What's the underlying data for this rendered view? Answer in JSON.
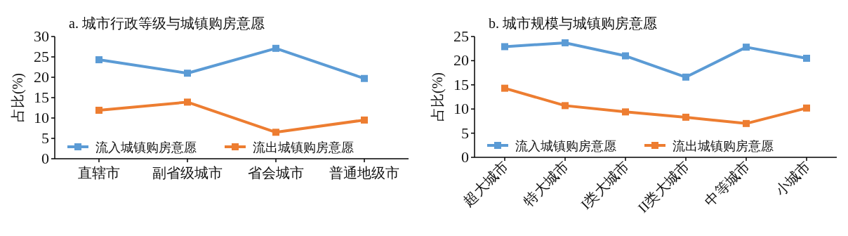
{
  "chart_data": [
    {
      "type": "line",
      "title": "a. 城市行政等级与城镇购房意愿",
      "ylabel": "占比(%)",
      "categories": [
        "直辖市",
        "副省级城市",
        "省会城市",
        "普通地级市"
      ],
      "series": [
        {
          "name": "流入城镇购房意愿",
          "color": "#5b9bd5",
          "values": [
            24.3,
            21.0,
            27.1,
            19.7
          ]
        },
        {
          "name": "流出城镇购房意愿",
          "color": "#ed7d31",
          "values": [
            11.9,
            13.9,
            6.5,
            9.5
          ]
        }
      ],
      "ylim": [
        0,
        30
      ],
      "yticks": [
        0,
        5,
        10,
        15,
        20,
        25,
        30
      ],
      "marker": "square",
      "line_style": "solid",
      "legend": "bottom",
      "grid": false
    },
    {
      "type": "line",
      "title": "b. 城市规模与城镇购房意愿",
      "ylabel": "占比(%)",
      "categories": [
        "超大城市",
        "特大城市",
        "I类大城市",
        "II类大城市",
        "中等城市",
        "小城市"
      ],
      "series": [
        {
          "name": "流入城镇购房意愿",
          "color": "#5b9bd5",
          "values": [
            22.9,
            23.7,
            21.0,
            16.6,
            22.8,
            20.5
          ]
        },
        {
          "name": "流出城镇购房意愿",
          "color": "#ed7d31",
          "values": [
            14.3,
            10.7,
            9.4,
            8.3,
            7.0,
            10.2
          ]
        }
      ],
      "ylim": [
        0,
        25
      ],
      "yticks": [
        0,
        5,
        10,
        15,
        20,
        25
      ],
      "marker": "square",
      "line_style": "solid",
      "legend": "bottom",
      "grid": false
    }
  ]
}
